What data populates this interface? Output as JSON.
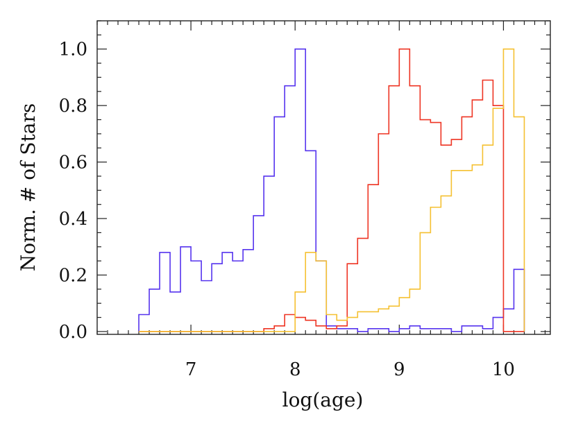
{
  "chart_data": {
    "type": "line",
    "step": "histogram",
    "xlabel": "log(age)",
    "ylabel": "Norm. # of Stars",
    "xlim": [
      6.1,
      10.45
    ],
    "ylim": [
      -0.01,
      1.1
    ],
    "xticks": [
      {
        "value": 7,
        "label": "7"
      },
      {
        "value": 8,
        "label": "8"
      },
      {
        "value": 9,
        "label": "9"
      },
      {
        "value": 10,
        "label": "10"
      }
    ],
    "yticks": [
      {
        "value": 0.0,
        "label": "0.0"
      },
      {
        "value": 0.2,
        "label": "0.2"
      },
      {
        "value": 0.4,
        "label": "0.4"
      },
      {
        "value": 0.6,
        "label": "0.6"
      },
      {
        "value": 0.8,
        "label": "0.8"
      },
      {
        "value": 1.0,
        "label": "1.0"
      }
    ],
    "grid": false,
    "bin_edges": [
      6.5,
      6.6,
      6.7,
      6.8,
      6.9,
      7.0,
      7.1,
      7.2,
      7.3,
      7.4,
      7.5,
      7.6,
      7.7,
      7.8,
      7.9,
      8.0,
      8.1,
      8.2,
      8.3,
      8.4,
      8.5,
      8.6,
      8.7,
      8.8,
      8.9,
      9.0,
      9.1,
      9.2,
      9.3,
      9.4,
      9.5,
      9.6,
      9.7,
      9.8,
      9.9,
      10.0,
      10.1,
      10.2
    ],
    "series": [
      {
        "color": "#5533ee",
        "values": [
          0.06,
          0.15,
          0.28,
          0.14,
          0.3,
          0.25,
          0.18,
          0.24,
          0.28,
          0.25,
          0.29,
          0.41,
          0.55,
          0.76,
          0.87,
          1.0,
          0.64,
          0.25,
          0.02,
          0.01,
          0.01,
          0.0,
          0.01,
          0.01,
          0.0,
          0.01,
          0.02,
          0.01,
          0.01,
          0.01,
          0.0,
          0.02,
          0.02,
          0.01,
          0.05,
          0.08,
          0.22
        ]
      },
      {
        "color": "#ee3322",
        "values": [
          0.0,
          0.0,
          0.0,
          0.0,
          0.0,
          0.0,
          0.0,
          0.0,
          0.0,
          0.0,
          0.0,
          0.0,
          0.01,
          0.02,
          0.06,
          0.05,
          0.04,
          0.02,
          0.01,
          0.02,
          0.24,
          0.33,
          0.52,
          0.7,
          0.87,
          1.0,
          0.87,
          0.75,
          0.74,
          0.66,
          0.68,
          0.76,
          0.82,
          0.89,
          0.8,
          0.0,
          0.0
        ]
      },
      {
        "color": "#f5c030",
        "values": [
          0.0,
          0.0,
          0.0,
          0.0,
          0.0,
          0.0,
          0.0,
          0.0,
          0.0,
          0.0,
          0.0,
          0.0,
          0.0,
          0.0,
          0.0,
          0.14,
          0.28,
          0.25,
          0.06,
          0.04,
          0.05,
          0.07,
          0.07,
          0.08,
          0.09,
          0.12,
          0.15,
          0.35,
          0.44,
          0.48,
          0.57,
          0.57,
          0.59,
          0.66,
          0.79,
          1.0,
          0.76
        ]
      }
    ]
  }
}
